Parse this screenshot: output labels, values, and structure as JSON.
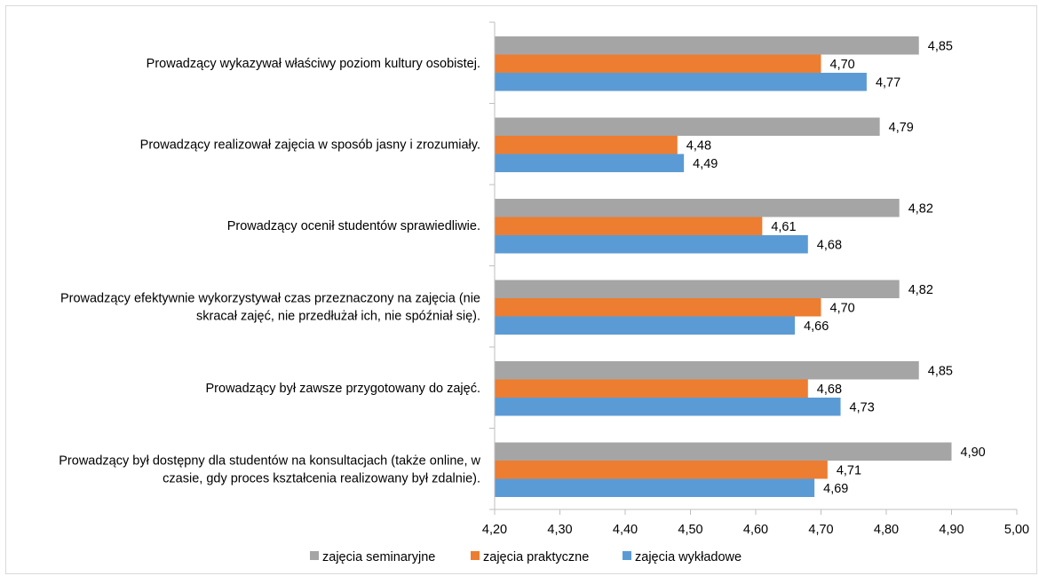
{
  "chart_data": {
    "type": "bar",
    "orientation": "horizontal",
    "categories": [
      [
        "Prowadzący wykazywał właściwy poziom kultury osobistej."
      ],
      [
        "Prowadzący realizował zajęcia w sposób jasny i zrozumiały."
      ],
      [
        "Prowadzący ocenił studentów sprawiedliwie."
      ],
      [
        "Prowadzący efektywnie wykorzystywał czas przeznaczony na zajęcia (nie",
        "skracał zajęć, nie przedłużał ich, nie spóźniał się)."
      ],
      [
        "Prowadzący był zawsze przygotowany do zajęć."
      ],
      [
        "Prowadzący był dostępny dla studentów na konsultacjach (także online, w",
        "czasie, gdy proces kształcenia realizowany był zdalnie)."
      ]
    ],
    "series": [
      {
        "name": "zajęcia seminaryjne",
        "color": "#a5a5a5",
        "values": [
          4.85,
          4.79,
          4.82,
          4.82,
          4.85,
          4.9
        ],
        "labels": [
          "4,85",
          "4,79",
          "4,82",
          "4,82",
          "4,85",
          "4,90"
        ]
      },
      {
        "name": "zajęcia praktyczne",
        "color": "#ed7d31",
        "values": [
          4.7,
          4.48,
          4.61,
          4.7,
          4.68,
          4.71
        ],
        "labels": [
          "4,70",
          "4,48",
          "4,61",
          "4,70",
          "4,68",
          "4,71"
        ]
      },
      {
        "name": "zajęcia wykładowe",
        "color": "#5b9bd5",
        "values": [
          4.77,
          4.49,
          4.68,
          4.66,
          4.73,
          4.69
        ],
        "labels": [
          "4,77",
          "4,49",
          "4,68",
          "4,66",
          "4,73",
          "4,69"
        ]
      }
    ],
    "xlim": [
      4.2,
      5.0
    ],
    "ticks": [
      4.2,
      4.3,
      4.4,
      4.5,
      4.6,
      4.7,
      4.8,
      4.9,
      5.0
    ],
    "tick_labels": [
      "4,20",
      "4,30",
      "4,40",
      "4,50",
      "4,60",
      "4,70",
      "4,80",
      "4,90",
      "5,00"
    ],
    "grid": false,
    "legend_position": "bottom"
  }
}
